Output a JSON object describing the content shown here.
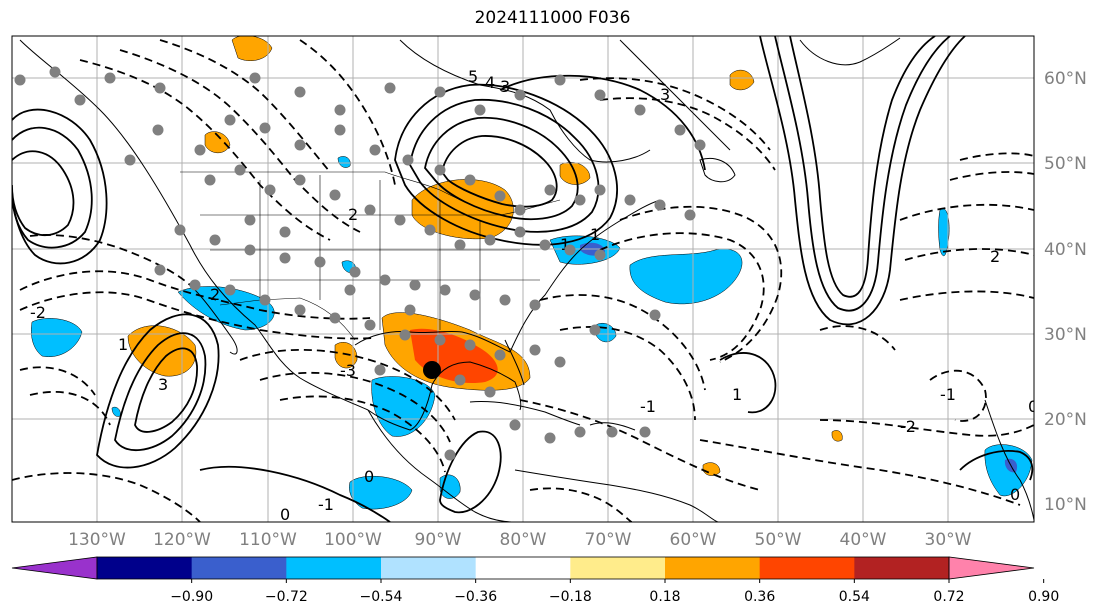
{
  "title": "2024111000 F036",
  "latitudes": [
    "60°N",
    "50°N",
    "40°N",
    "30°N",
    "20°N",
    "10°N"
  ],
  "longitudes": [
    "130°W",
    "120°W",
    "110°W",
    "100°W",
    "90°W",
    "80°W",
    "70°W",
    "60°W",
    "50°W",
    "40°W",
    "30°W"
  ],
  "colorbar": {
    "colors": [
      "#9932cc",
      "#00008b",
      "#3a5fcd",
      "#00bfff",
      "#b0e2ff",
      "#ffffff",
      "#ffec8b",
      "#ffa500",
      "#ff4500",
      "#b22222",
      "#ff82ab"
    ],
    "ticks": [
      "−0.90",
      "−0.72",
      "−0.54",
      "−0.36",
      "−0.18",
      "0.18",
      "0.36",
      "0.54",
      "0.72",
      "0.90"
    ]
  },
  "contour_labels": [
    "5",
    "4",
    "3",
    "3",
    "2",
    "1",
    "2",
    "3",
    "1",
    "0",
    "-1",
    "-2",
    "1",
    "-1",
    "1",
    "-2",
    "2",
    "-1",
    "0",
    "0",
    "0",
    "-3"
  ],
  "colors": {
    "positive": "#ffa500",
    "strong_positive": "#ff4500",
    "negative": "#00bfff",
    "strong_negative": "#3a5fcd",
    "station": "#808080",
    "marker": "#000000"
  }
}
